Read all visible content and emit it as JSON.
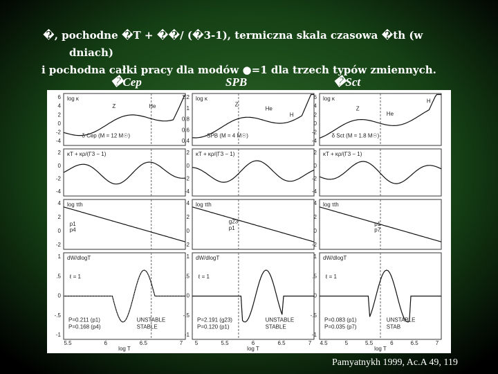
{
  "title": {
    "line1": "�, pochodne �T + ��/ (�3-1), termiczna skala czasowa �th (w",
    "line2": "dniach)",
    "line3": "i pochodna całki pracy dla modów ●=1 dla trzech typów zmiennych."
  },
  "columns": [
    "�Cep",
    "SPB",
    "�Sct"
  ],
  "figure": {
    "row_labels": [
      "log κ",
      "κT + κρ/(Γ3 − 1)",
      "log τth",
      "dW/dlogT"
    ],
    "xlabel": "log T",
    "panels": [
      {
        "xticks": [
          "5.5",
          "6",
          "6.5",
          "7"
        ],
        "yticks": [
          [
            "6",
            "4",
            "2",
            "0",
            "-2",
            "-4"
          ],
          [
            "2",
            "0",
            "-2",
            "-4"
          ],
          [
            "4",
            "2",
            "0",
            "-2"
          ],
          [
            "1",
            ".5",
            "0",
            "-.5",
            "-1"
          ]
        ],
        "notes": [
          [
            "Z",
            "He",
            "δ Cep (M = 12 M☉)"
          ],
          [],
          [
            "p1",
            "p4"
          ],
          [
            "ℓ = 1",
            "P=0.211 (p1)",
            "P=0.168 (p4)",
            "UNSTABLE",
            "STABLE"
          ]
        ]
      },
      {
        "xticks": [
          "5",
          "5.5",
          "6",
          "6.5",
          "7"
        ],
        "yticks": [
          [
            "1.2",
            "1",
            "0.8",
            "0.6",
            "0.4"
          ],
          [
            "2",
            "0",
            "-2",
            "-4"
          ],
          [
            "4",
            "2",
            "0",
            "-2"
          ],
          [
            "1",
            ".5",
            "0",
            "-.5",
            "-1"
          ]
        ],
        "notes": [
          [
            "Z",
            "He",
            "H",
            "SPB (M = 4 M☉)"
          ],
          [],
          [
            "g23",
            "p1"
          ],
          [
            "ℓ = 1",
            "P=2.191 (g23)",
            "P=0.120 (p1)",
            "UNSTABLE",
            "STABLE"
          ]
        ]
      },
      {
        "xticks": [
          "4.5",
          "5",
          "5.5",
          "6",
          "6.5",
          "7"
        ],
        "yticks": [
          [
            "6",
            "4",
            "2",
            "0",
            "-2",
            "-4"
          ],
          [
            "2",
            "0",
            "-2",
            "-4"
          ],
          [
            "4",
            "2",
            "0",
            "-2"
          ],
          [
            "1",
            ".5",
            "0",
            "-.5",
            "-1"
          ]
        ],
        "notes": [
          [
            "Z",
            "He",
            "H",
            "δ Sct (M = 1.8 M☉)"
          ],
          [],
          [
            "p1",
            "p7"
          ],
          [
            "ℓ = 1",
            "P=0.083 (p1)",
            "P=0.035 (p7)",
            "UNSTABLE",
            "STAB"
          ]
        ]
      }
    ]
  },
  "citation": "Pamyatnykh 1999, Ac.A 49, 119"
}
